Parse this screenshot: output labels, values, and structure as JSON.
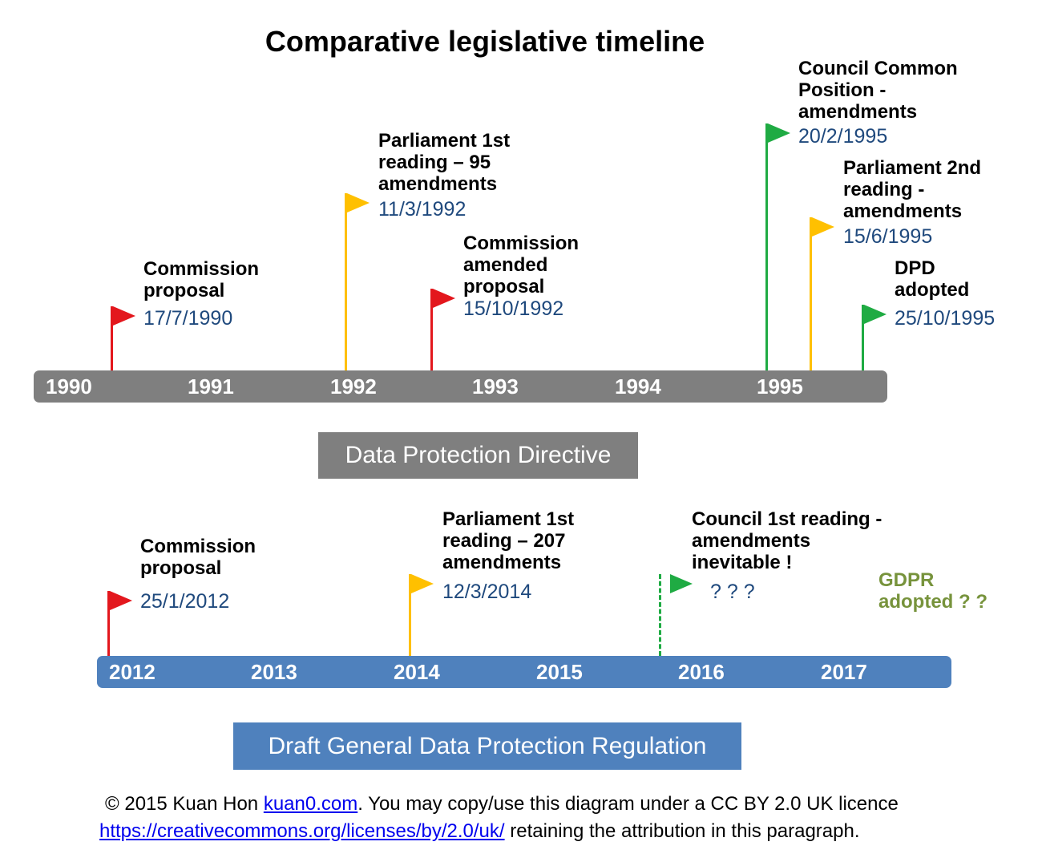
{
  "title": "Comparative legislative timeline",
  "dpd": {
    "years": [
      "1990",
      "1991",
      "1992",
      "1993",
      "1994",
      "1995"
    ],
    "label": "Data Protection Directive",
    "events": [
      {
        "title": [
          "Commission",
          "proposal"
        ],
        "date": "17/7/1990",
        "color": "#e3171d"
      },
      {
        "title": [
          "Parliament 1st",
          "reading – 95",
          "amendments"
        ],
        "date": "11/3/1992",
        "color": "#ffc000"
      },
      {
        "title": [
          "Commission",
          "amended",
          "proposal"
        ],
        "date": "15/10/1992",
        "color": "#e3171d"
      },
      {
        "title": [
          "Council Common",
          "Position -",
          "amendments"
        ],
        "date": "20/2/1995",
        "color": "#1fab43"
      },
      {
        "title": [
          "Parliament 2nd",
          "reading -",
          "amendments"
        ],
        "date": "15/6/1995",
        "color": "#ffc000"
      },
      {
        "title": [
          "DPD",
          "adopted"
        ],
        "date": "25/10/1995",
        "color": "#1fab43"
      }
    ]
  },
  "gdpr": {
    "years": [
      "2012",
      "2013",
      "2014",
      "2015",
      "2016",
      "2017"
    ],
    "label": "Draft General Data Protection Regulation",
    "events": [
      {
        "title": [
          "Commission",
          "proposal"
        ],
        "date": "25/1/2012",
        "color": "#e3171d"
      },
      {
        "title": [
          "Parliament 1st",
          "reading – 207",
          "amendments"
        ],
        "date": "12/3/2014",
        "color": "#ffc000"
      },
      {
        "title": [
          "Council 1st reading -",
          "amendments",
          "inevitable !"
        ],
        "date": "? ? ?",
        "color": "#1fab43"
      }
    ],
    "adopted": [
      "GDPR",
      "adopted ? ?"
    ],
    "adopted_color": "#77933c"
  },
  "footer": {
    "line1_prefix": "© 2015 Kuan Hon ",
    "line1_link": "kuan0.com",
    "line1_suffix": ". You may copy/use this diagram under a CC BY 2.0 UK licence",
    "line2_link": "https://creativecommons.org/licenses/by/2.0/uk/",
    "line2_suffix": " retaining the attribution in this paragraph."
  }
}
